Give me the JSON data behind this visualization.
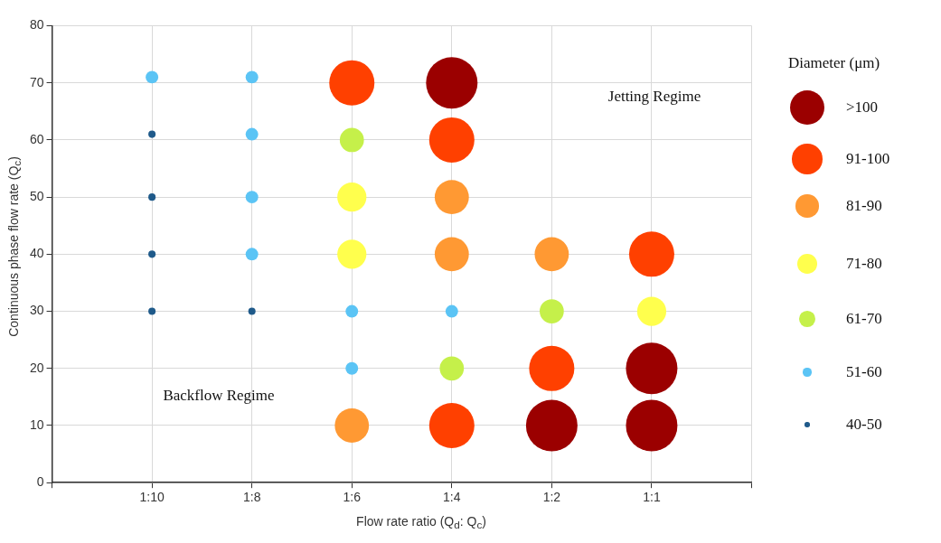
{
  "chart_data": {
    "type": "bubble",
    "xlabel": "Flow rate ratio (Q$_{d}$: Q$_{c}$)",
    "ylabel": "Continuous phase flow rate (Q$_{c}$)",
    "legend_title": "Diameter (μm)",
    "categories": [
      null,
      "1:10",
      "1:8",
      "1:6",
      "1:4",
      "1:2",
      "1:1",
      null
    ],
    "ylim": [
      0,
      80
    ],
    "yticks": [
      0,
      10,
      20,
      30,
      40,
      50,
      60,
      70,
      80
    ],
    "grid": true,
    "legend": "right",
    "annotations": [
      "Backflow Regime",
      "Jetting Regime"
    ],
    "series": [
      {
        "name": ">100",
        "color": "#9b0000",
        "x": [
          "1:4",
          "1:2",
          "1:1",
          "1:1"
        ],
        "values": [
          70,
          10,
          20,
          10
        ],
        "sizes": [
          1,
          1,
          1,
          1
        ]
      },
      {
        "name": "91-100",
        "color": "#ff4000",
        "x": [
          "1:6",
          "1:4",
          "1:4",
          "1:2",
          "1:1"
        ],
        "values": [
          70,
          60,
          10,
          20,
          40
        ],
        "sizes": [
          0.77,
          0.77,
          0.77,
          0.77,
          0.77
        ]
      },
      {
        "name": "81-90",
        "color": "#ff9933",
        "x": [
          "1:6",
          "1:4",
          "1:4",
          "1:2"
        ],
        "values": [
          10,
          50,
          40,
          40
        ],
        "sizes": [
          0.44,
          0.44,
          0.44,
          0.44
        ]
      },
      {
        "name": "71-80",
        "color": "#ffff4d",
        "x": [
          "1:6",
          "1:6",
          "1:1"
        ],
        "values": [
          50,
          40,
          30
        ],
        "sizes": [
          0.32,
          0.32,
          0.32
        ]
      },
      {
        "name": "61-70",
        "color": "#c5f04a",
        "x": [
          "1:6",
          "1:4",
          "1:2"
        ],
        "values": [
          60,
          20,
          30
        ],
        "sizes": [
          0.22,
          0.22,
          0.22
        ]
      },
      {
        "name": "51-60",
        "color": "#5bc4f5",
        "x": [
          "1:10",
          "1:8",
          "1:8",
          "1:8",
          "1:8",
          "1:6",
          "1:6",
          "1:4"
        ],
        "values": [
          71,
          71,
          61,
          50,
          40,
          30,
          20,
          30
        ],
        "sizes": [
          0.06,
          0.06,
          0.06,
          0.06,
          0.06,
          0.06,
          0.06,
          0.06
        ]
      },
      {
        "name": "40-50",
        "color": "#1f5a8a",
        "x": [
          "1:10",
          "1:10",
          "1:10",
          "1:10",
          "1:8"
        ],
        "values": [
          61,
          50,
          40,
          30,
          30
        ],
        "sizes": [
          0.02,
          0.02,
          0.02,
          0.02,
          0.02
        ]
      }
    ]
  }
}
